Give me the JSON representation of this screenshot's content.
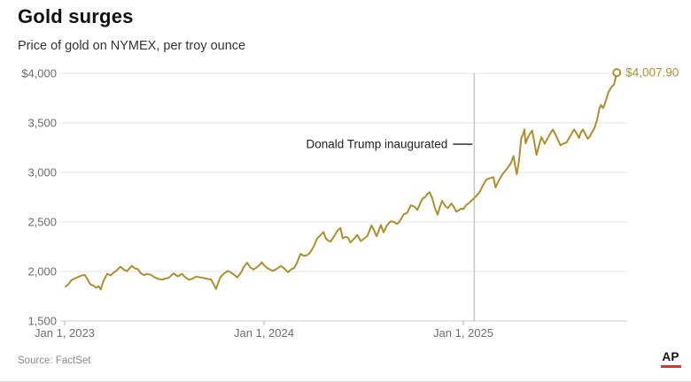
{
  "header": {
    "title": "Gold surges",
    "subtitle": "Price of gold on NYMEX, per troy ounce"
  },
  "footer": {
    "source": "Source: FactSet",
    "credit": "AP"
  },
  "colors": {
    "line": "#b18e2b",
    "grid": "#e6e6e6",
    "axis_line": "#cfcfcf",
    "tick": "#b3b3b3",
    "axis_text": "#6e6e6e",
    "annotation_line": "#c6c6c6",
    "annotation_text": "#1f1f1f",
    "end_label": "#b18e2b"
  },
  "chart_data": {
    "type": "line",
    "title": "Gold surges",
    "subtitle": "Price of gold on NYMEX, per troy ounce",
    "x_unit": "days since Jan 1, 2023",
    "xlim": [
      0,
      1030
    ],
    "ylim": [
      1500,
      4000
    ],
    "grid": "horizontal",
    "x_ticks": [
      {
        "t": 0,
        "label": "Jan 1, 2023"
      },
      {
        "t": 365,
        "label": "Jan 1, 2024"
      },
      {
        "t": 730,
        "label": "Jan 1, 2025"
      }
    ],
    "y_ticks": [
      {
        "v": 4000,
        "label": "$4,000"
      },
      {
        "v": 3500,
        "label": "3,500"
      },
      {
        "v": 3000,
        "label": "3,000"
      },
      {
        "v": 2500,
        "label": "2,500"
      },
      {
        "v": 2000,
        "label": "2,000"
      },
      {
        "v": 1500,
        "label": "1,500"
      }
    ],
    "annotation": {
      "label": "Donald Trump inaugurated",
      "t": 750,
      "anchor_value": 3285
    },
    "end_label": "$4,007.90",
    "end_value": 4007.9,
    "series": [
      {
        "name": "Gold price per troy ounce",
        "points": [
          [
            2,
            1846
          ],
          [
            8,
            1878
          ],
          [
            12,
            1912
          ],
          [
            18,
            1928
          ],
          [
            25,
            1945
          ],
          [
            31,
            1960
          ],
          [
            37,
            1964
          ],
          [
            42,
            1920
          ],
          [
            47,
            1870
          ],
          [
            53,
            1855
          ],
          [
            58,
            1836
          ],
          [
            62,
            1852
          ],
          [
            66,
            1818
          ],
          [
            71,
            1905
          ],
          [
            78,
            1978
          ],
          [
            84,
            1960
          ],
          [
            89,
            1986
          ],
          [
            95,
            2010
          ],
          [
            102,
            2048
          ],
          [
            108,
            2020
          ],
          [
            114,
            2004
          ],
          [
            123,
            2056
          ],
          [
            129,
            2030
          ],
          [
            134,
            2022
          ],
          [
            140,
            1980
          ],
          [
            145,
            1963
          ],
          [
            151,
            1975
          ],
          [
            158,
            1966
          ],
          [
            165,
            1940
          ],
          [
            171,
            1925
          ],
          [
            179,
            1917
          ],
          [
            185,
            1930
          ],
          [
            191,
            1937
          ],
          [
            196,
            1965
          ],
          [
            200,
            1980
          ],
          [
            207,
            1950
          ],
          [
            215,
            1976
          ],
          [
            221,
            1940
          ],
          [
            228,
            1915
          ],
          [
            235,
            1930
          ],
          [
            241,
            1948
          ],
          [
            248,
            1940
          ],
          [
            254,
            1935
          ],
          [
            261,
            1925
          ],
          [
            268,
            1920
          ],
          [
            273,
            1870
          ],
          [
            277,
            1823
          ],
          [
            285,
            1941
          ],
          [
            292,
            1980
          ],
          [
            299,
            2005
          ],
          [
            306,
            1985
          ],
          [
            312,
            1960
          ],
          [
            316,
            1940
          ],
          [
            323,
            1990
          ],
          [
            328,
            2045
          ],
          [
            334,
            2089
          ],
          [
            340,
            2040
          ],
          [
            346,
            2020
          ],
          [
            352,
            2045
          ],
          [
            358,
            2070
          ],
          [
            361,
            2093
          ],
          [
            365,
            2063
          ],
          [
            372,
            2030
          ],
          [
            381,
            2006
          ],
          [
            388,
            2025
          ],
          [
            396,
            2055
          ],
          [
            402,
            2030
          ],
          [
            409,
            1993
          ],
          [
            416,
            2025
          ],
          [
            420,
            2035
          ],
          [
            425,
            2083
          ],
          [
            432,
            2179
          ],
          [
            437,
            2160
          ],
          [
            442,
            2161
          ],
          [
            448,
            2180
          ],
          [
            456,
            2250
          ],
          [
            462,
            2330
          ],
          [
            467,
            2360
          ],
          [
            474,
            2398
          ],
          [
            478,
            2335
          ],
          [
            483,
            2310
          ],
          [
            487,
            2303
          ],
          [
            494,
            2360
          ],
          [
            500,
            2415
          ],
          [
            505,
            2438
          ],
          [
            509,
            2335
          ],
          [
            515,
            2350
          ],
          [
            519,
            2340
          ],
          [
            523,
            2293
          ],
          [
            528,
            2320
          ],
          [
            533,
            2350
          ],
          [
            536,
            2369
          ],
          [
            542,
            2306
          ],
          [
            548,
            2330
          ],
          [
            554,
            2356
          ],
          [
            558,
            2410
          ],
          [
            562,
            2465
          ],
          [
            567,
            2410
          ],
          [
            571,
            2355
          ],
          [
            575,
            2410
          ],
          [
            579,
            2470
          ],
          [
            584,
            2395
          ],
          [
            590,
            2465
          ],
          [
            597,
            2507
          ],
          [
            603,
            2500
          ],
          [
            608,
            2480
          ],
          [
            612,
            2495
          ],
          [
            617,
            2540
          ],
          [
            621,
            2578
          ],
          [
            627,
            2590
          ],
          [
            634,
            2668
          ],
          [
            640,
            2655
          ],
          [
            646,
            2621
          ],
          [
            652,
            2700
          ],
          [
            656,
            2740
          ],
          [
            660,
            2749
          ],
          [
            664,
            2780
          ],
          [
            668,
            2801
          ],
          [
            673,
            2740
          ],
          [
            678,
            2640
          ],
          [
            683,
            2573
          ],
          [
            687,
            2650
          ],
          [
            691,
            2713
          ],
          [
            697,
            2660
          ],
          [
            702,
            2640
          ],
          [
            708,
            2686
          ],
          [
            713,
            2650
          ],
          [
            717,
            2604
          ],
          [
            722,
            2620
          ],
          [
            726,
            2635
          ],
          [
            730,
            2629
          ],
          [
            735,
            2670
          ],
          [
            740,
            2690
          ],
          [
            745,
            2715
          ],
          [
            750,
            2740
          ],
          [
            755,
            2770
          ],
          [
            761,
            2812
          ],
          [
            766,
            2870
          ],
          [
            772,
            2928
          ],
          [
            778,
            2940
          ],
          [
            785,
            2953
          ],
          [
            789,
            2848
          ],
          [
            795,
            2920
          ],
          [
            802,
            2984
          ],
          [
            809,
            3030
          ],
          [
            817,
            3090
          ],
          [
            822,
            3166
          ],
          [
            825,
            3060
          ],
          [
            828,
            2982
          ],
          [
            832,
            3120
          ],
          [
            836,
            3340
          ],
          [
            840,
            3395
          ],
          [
            842,
            3435
          ],
          [
            844,
            3294
          ],
          [
            848,
            3350
          ],
          [
            852,
            3390
          ],
          [
            856,
            3422
          ],
          [
            860,
            3310
          ],
          [
            864,
            3178
          ],
          [
            869,
            3280
          ],
          [
            873,
            3357
          ],
          [
            879,
            3290
          ],
          [
            885,
            3350
          ],
          [
            890,
            3400
          ],
          [
            894,
            3432
          ],
          [
            899,
            3380
          ],
          [
            904,
            3320
          ],
          [
            908,
            3274
          ],
          [
            913,
            3290
          ],
          [
            919,
            3302
          ],
          [
            925,
            3360
          ],
          [
            929,
            3400
          ],
          [
            933,
            3434
          ],
          [
            938,
            3390
          ],
          [
            942,
            3348
          ],
          [
            945,
            3400
          ],
          [
            949,
            3434
          ],
          [
            954,
            3380
          ],
          [
            958,
            3340
          ],
          [
            961,
            3358
          ],
          [
            966,
            3410
          ],
          [
            970,
            3445
          ],
          [
            975,
            3530
          ],
          [
            979,
            3640
          ],
          [
            982,
            3682
          ],
          [
            986,
            3650
          ],
          [
            989,
            3690
          ],
          [
            993,
            3760
          ],
          [
            996,
            3815
          ],
          [
            1000,
            3850
          ],
          [
            1003,
            3873
          ],
          [
            1006,
            3886
          ],
          [
            1009,
            3960
          ],
          [
            1011,
            4007.9
          ]
        ]
      }
    ]
  }
}
